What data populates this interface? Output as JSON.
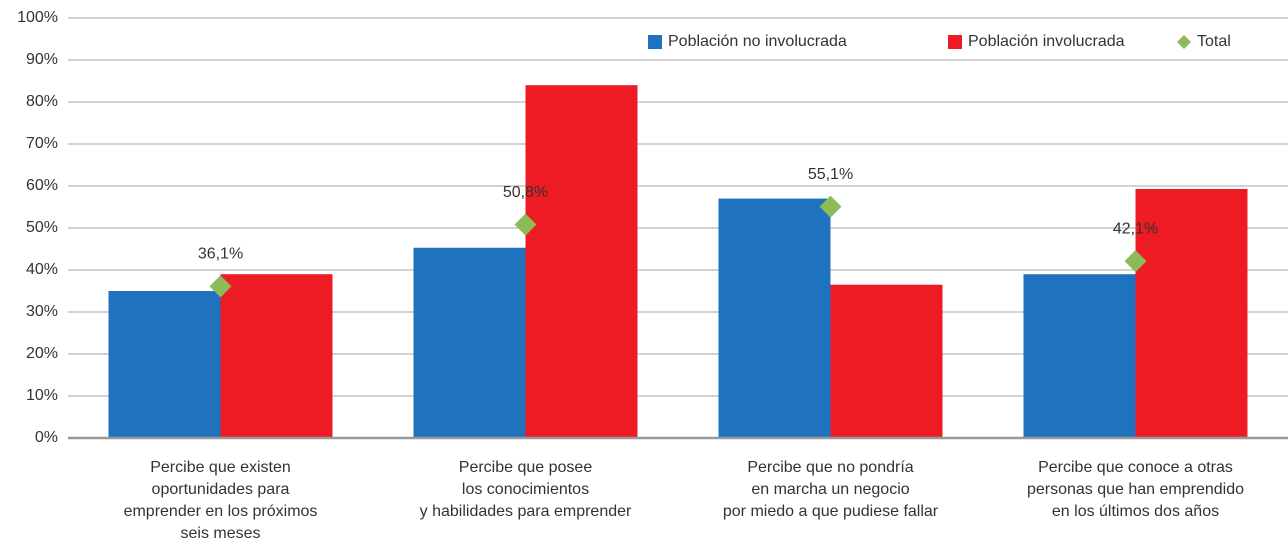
{
  "chart_data": {
    "type": "bar",
    "categories": [
      [
        "Percibe que existen",
        "oportunidades para",
        "emprender en los próximos",
        "seis meses"
      ],
      [
        "Percibe que posee",
        "los conocimientos",
        "y habilidades para emprender"
      ],
      [
        "Percibe que no pondría",
        "en marcha un negocio",
        "por miedo a que pudiese fallar"
      ],
      [
        "Percibe que conoce a otras",
        "personas que han emprendido",
        "en los últimos dos años"
      ]
    ],
    "series": [
      {
        "name": "Población no involucrada",
        "color": "#1f73be",
        "values": [
          35,
          45.3,
          57,
          39
        ]
      },
      {
        "name": "Población involucrada",
        "color": "#ed1c24",
        "values": [
          39,
          84,
          36.5,
          59.3
        ]
      },
      {
        "name": "Total",
        "color": "#8cbb5a",
        "marker": "diamond",
        "values": [
          36.1,
          50.8,
          55.1,
          42.1
        ],
        "value_labels": [
          "36,1%",
          "50,8%",
          "55,1%",
          "42,1%"
        ]
      }
    ],
    "ylim": [
      0,
      100
    ],
    "yticks": [
      {
        "value": 0,
        "label": "0%"
      },
      {
        "value": 10,
        "label": "10%"
      },
      {
        "value": 20,
        "label": "20%"
      },
      {
        "value": 30,
        "label": "30%"
      },
      {
        "value": 40,
        "label": "40%"
      },
      {
        "value": 50,
        "label": "50%"
      },
      {
        "value": 60,
        "label": "60%"
      },
      {
        "value": 70,
        "label": "70%"
      },
      {
        "value": 80,
        "label": "80%"
      },
      {
        "value": 90,
        "label": "90%"
      },
      {
        "value": 100,
        "label": "100%"
      }
    ],
    "grid": true,
    "legend": "top-right"
  }
}
